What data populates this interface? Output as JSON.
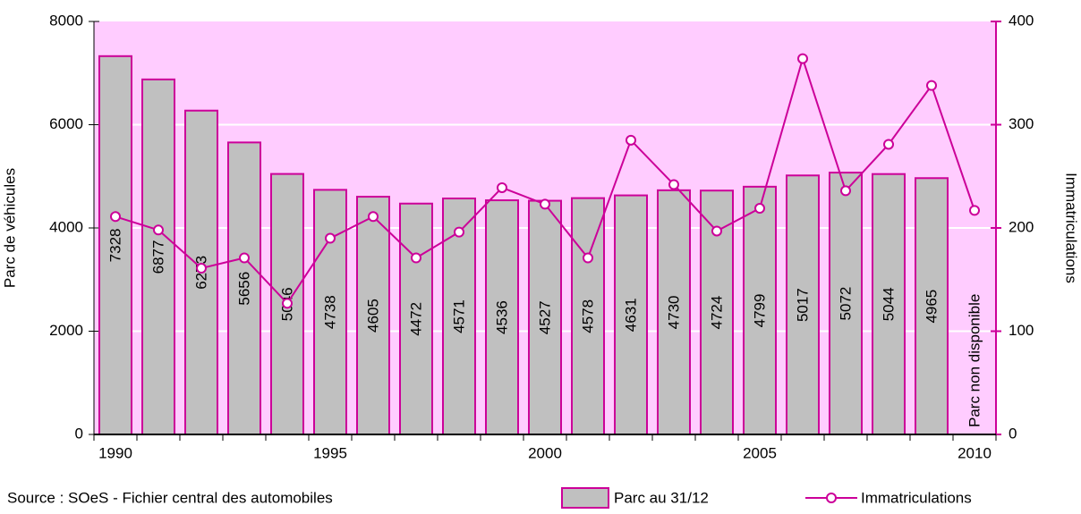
{
  "chart_data": {
    "type": "bar",
    "categories": [
      "1990",
      null,
      null,
      null,
      null,
      "1995",
      null,
      null,
      null,
      null,
      "2000",
      null,
      null,
      null,
      null,
      "2005",
      null,
      null,
      null,
      null,
      "2010"
    ],
    "series": [
      {
        "name": "Parc au 31/12",
        "type": "bar",
        "color": "#c0c0c0",
        "edge": "#cc0099",
        "values": [
          7328,
          6877,
          6273,
          5656,
          5046,
          4738,
          4605,
          4472,
          4571,
          4536,
          4527,
          4578,
          4631,
          4730,
          4724,
          4799,
          5017,
          5072,
          5044,
          4965,
          null
        ]
      },
      {
        "name": "Immatriculations",
        "type": "line",
        "axis": "y2",
        "color": "#cc0099",
        "values": [
          211,
          198,
          161,
          171,
          127,
          190,
          211,
          171,
          196,
          239,
          223,
          171,
          285,
          242,
          197,
          219,
          364,
          236,
          281,
          338,
          217
        ]
      }
    ],
    "ylim": [
      0,
      8000
    ],
    "yticks": [
      0,
      2000,
      4000,
      6000,
      8000
    ],
    "y2lim": [
      0,
      400
    ],
    "y2ticks": [
      0,
      100,
      200,
      300,
      400
    ],
    "ylabel": "Parc de véhicules",
    "y2label": "Immatriculations",
    "annotation": "Parc non disponible",
    "source": "Source : SOeS - Fichier central des automobiles",
    "background": "#ffccff",
    "grid": true
  }
}
